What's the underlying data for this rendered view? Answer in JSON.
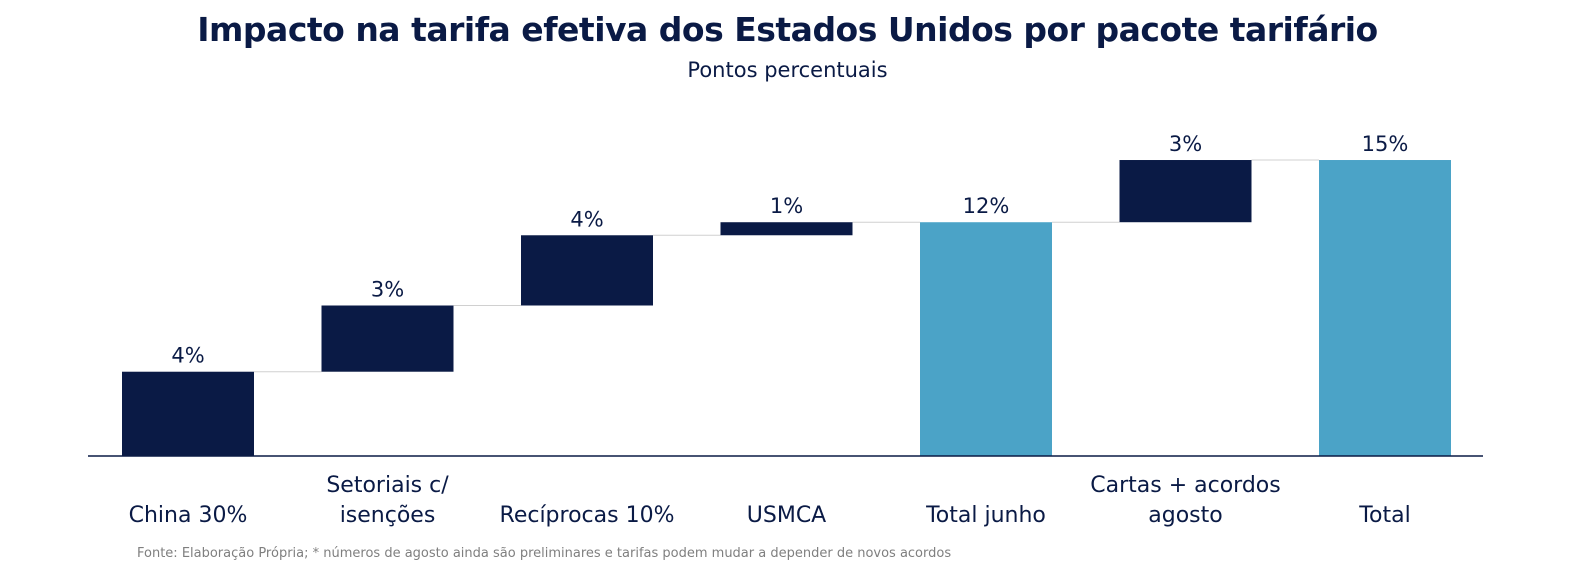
{
  "header": {
    "title": "Impacto na tarifa efetiva dos Estados Unidos por pacote tarifário",
    "subtitle": "Pontos percentuais"
  },
  "footnote": "Fonte: Elaboração Própria; * números de agosto ainda são preliminares e tarifas podem mudar a depender de novos acordos",
  "colors": {
    "increment": "#0a1a45",
    "total": "#4ba3c7",
    "axis": "#0a1a45",
    "connector": "#d0d0d0",
    "text": "#0a1a45"
  },
  "chart_data": {
    "type": "bar",
    "variant": "waterfall",
    "categories": [
      [
        "China 30%"
      ],
      [
        "Setoriais c/",
        "isenções"
      ],
      [
        "Recíprocas 10%"
      ],
      [
        "USMCA"
      ],
      [
        "Total junho"
      ],
      [
        "Cartas + acordos",
        "agosto"
      ],
      [
        "Total"
      ]
    ],
    "values": [
      4.2,
      3.3,
      3.5,
      0.65,
      11.65,
      3.1,
      14.75
    ],
    "kinds": [
      "increment",
      "increment",
      "increment",
      "increment",
      "total",
      "increment",
      "total"
    ],
    "data_labels": [
      "4%",
      "3%",
      "4%",
      "1%",
      "12%",
      "3%",
      "15%"
    ],
    "ylim": [
      0,
      15
    ],
    "grid": false,
    "legend": "none"
  }
}
